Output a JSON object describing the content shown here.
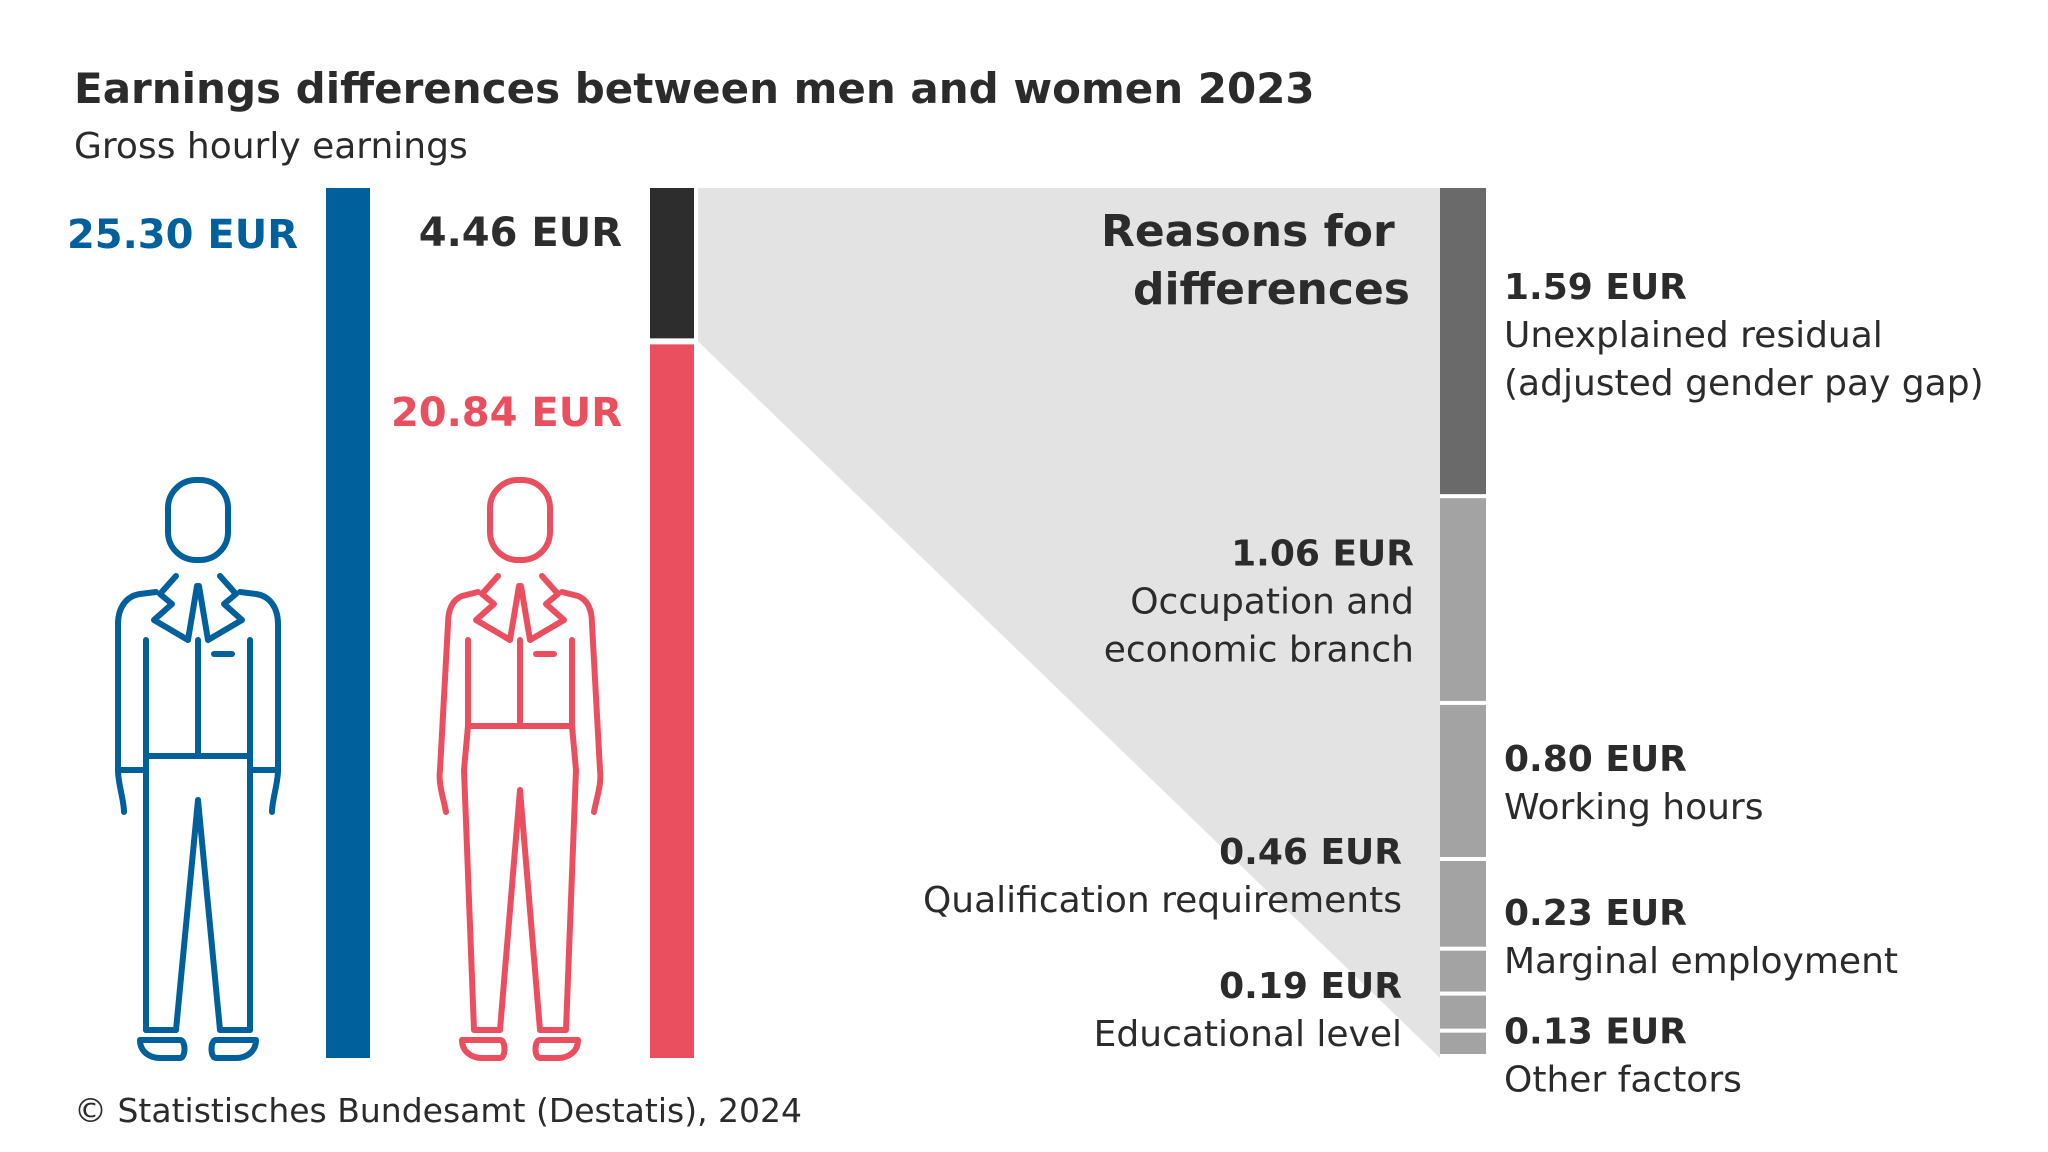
{
  "title": "Earnings differences between men and women 2023",
  "subtitle": "Gross hourly earnings",
  "source": "© Statistisches Bundesamt (Destatis), 2024",
  "colors": {
    "men": "#00609c",
    "women": "#ea4f5f",
    "gap": "#2d2d2d",
    "unexplained": "#6a6a6a",
    "explained": "#a3a3a3",
    "wedge": "#e3e3e3"
  },
  "icons": [
    "man-icon",
    "woman-icon",
    "destatis-logo-icon"
  ],
  "chart_data": {
    "type": "bar",
    "unit": "EUR",
    "bars": [
      {
        "name": "men",
        "value": 25.3,
        "label": "25.30 EUR"
      },
      {
        "name": "women",
        "value": 20.84,
        "label": "20.84 EUR"
      },
      {
        "name": "gap",
        "value": 4.46,
        "label": "4.46 EUR"
      }
    ],
    "breakdown_title": "Reasons for differences",
    "breakdown": [
      {
        "value": 1.59,
        "value_label": "1.59 EUR",
        "lines": [
          "Unexplained residual",
          "(adjusted gender pay gap)"
        ],
        "side": "right",
        "type": "unexplained"
      },
      {
        "value": 1.06,
        "value_label": "1.06 EUR",
        "lines": [
          "Occupation and",
          "economic branch"
        ],
        "side": "left",
        "type": "explained"
      },
      {
        "value": 0.8,
        "value_label": "0.80 EUR",
        "lines": [
          "Working hours"
        ],
        "side": "right",
        "type": "explained"
      },
      {
        "value": 0.46,
        "value_label": "0.46 EUR",
        "lines": [
          "Qualification requirements"
        ],
        "side": "left",
        "type": "explained"
      },
      {
        "value": 0.23,
        "value_label": "0.23 EUR",
        "lines": [
          "Marginal employment"
        ],
        "side": "right",
        "type": "explained"
      },
      {
        "value": 0.19,
        "value_label": "0.19 EUR",
        "lines": [
          "Educational level"
        ],
        "side": "left",
        "type": "explained"
      },
      {
        "value": 0.13,
        "value_label": "0.13 EUR",
        "lines": [
          "Other factors"
        ],
        "side": "right",
        "type": "explained"
      }
    ]
  }
}
